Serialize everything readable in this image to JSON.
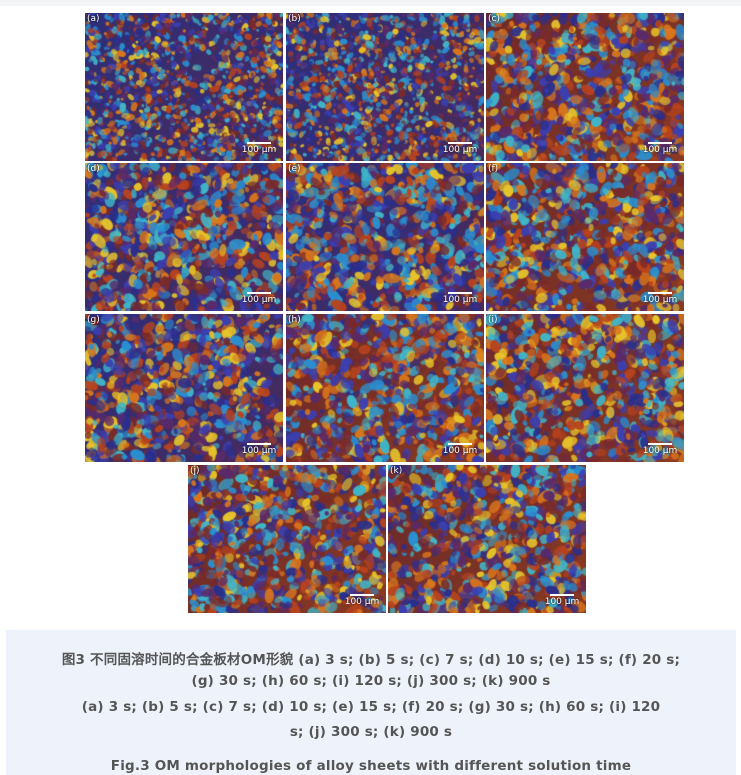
{
  "figure": {
    "panels": [
      {
        "label": "(a)",
        "scale": "100 μm"
      },
      {
        "label": "(b)",
        "scale": "100 μm"
      },
      {
        "label": "(c)",
        "scale": "100 μm"
      },
      {
        "label": "(d)",
        "scale": "100 μm"
      },
      {
        "label": "(e)",
        "scale": "100 μm"
      },
      {
        "label": "(f)",
        "scale": "100 μm"
      },
      {
        "label": "(g)",
        "scale": "100 μm"
      },
      {
        "label": "(h)",
        "scale": "100 μm"
      },
      {
        "label": "(i)",
        "scale": "100 μm"
      },
      {
        "label": "(j)",
        "scale": "100 μm"
      },
      {
        "label": "(k)",
        "scale": "100 μm"
      }
    ]
  },
  "caption": {
    "zh_line1": "图3 不同固溶时间的合金板材OM形貌 (a) 3 s;   (b) 5 s;   (c) 7 s;   (d) 10 s;   (e) 15 s;   (f) 20 s;",
    "zh_line2": "(g) 30 s;   (h) 60 s;   (i) 120 s;   (j) 300 s;   (k) 900 s",
    "en_line1": "(a) 3 s;   (b) 5 s;   (c) 7 s;   (d) 10 s;   (e) 15 s;   (f) 20 s;   (g) 30 s;   (h) 60 s;   (i) 120",
    "en_line2": "s;   (j) 300 s;   (k) 900 s",
    "en_title": "Fig.3 OM morphologies of alloy sheets with different solution time"
  },
  "colors": {
    "grain_palette": [
      "#2a2f8c",
      "#3b3fb0",
      "#7a2a2a",
      "#b8431e",
      "#d9761c",
      "#e8c52a",
      "#3fb6c9",
      "#2a8fd0",
      "#5a2a6a"
    ],
    "caption_bg": "#eef3fb",
    "caption_text": "#555555"
  }
}
